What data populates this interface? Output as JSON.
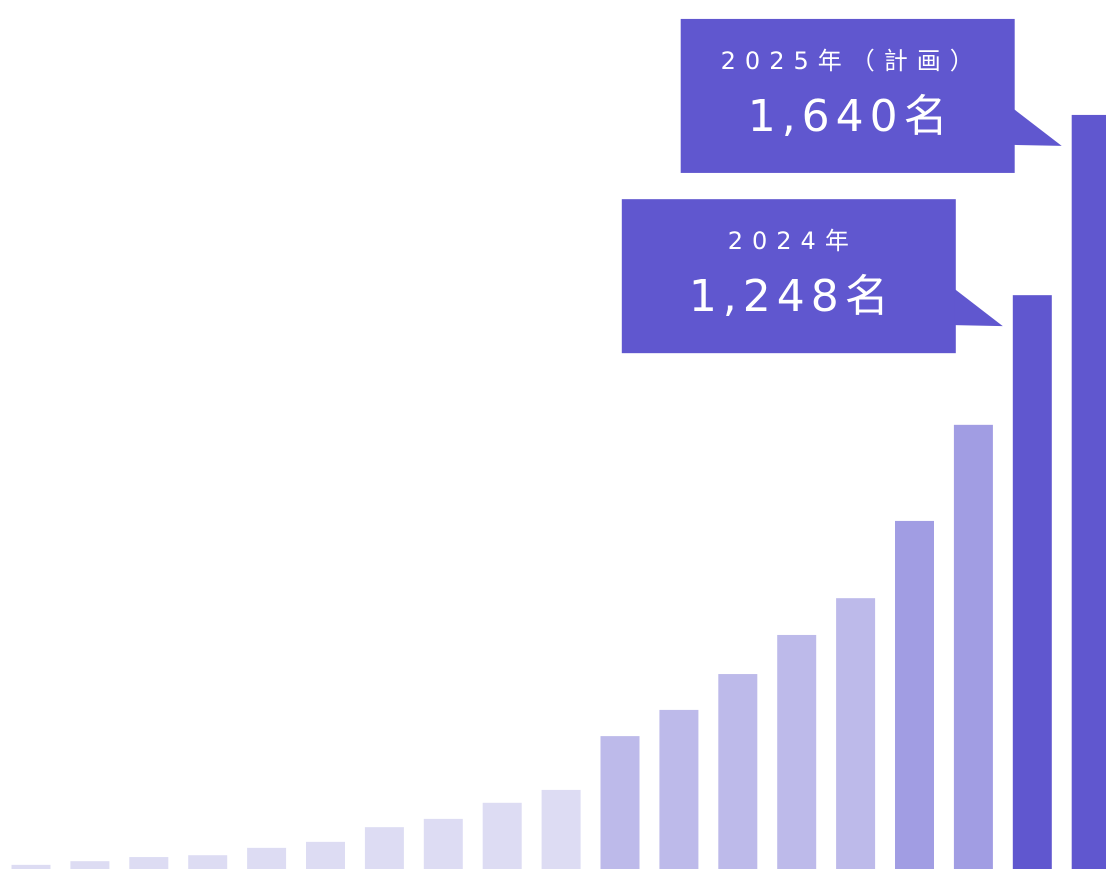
{
  "chart_data": {
    "type": "bar",
    "categories": [
      null,
      null,
      null,
      null,
      null,
      null,
      null,
      null,
      null,
      null,
      null,
      null,
      null,
      null,
      null,
      null,
      null,
      "2024年",
      "2025年（計画）"
    ],
    "values": [
      9,
      17,
      26,
      30,
      46,
      59,
      91,
      109,
      144,
      172,
      289,
      346,
      424,
      509,
      589,
      757,
      966,
      1248,
      1640
    ],
    "value_labels": [
      null,
      null,
      null,
      null,
      null,
      null,
      null,
      null,
      null,
      null,
      null,
      null,
      null,
      null,
      null,
      null,
      null,
      "1,248名",
      "1,640名"
    ],
    "colors": [
      "#dddcf3",
      "#dddcf3",
      "#dddcf3",
      "#dddcf3",
      "#dddcf3",
      "#dddcf3",
      "#dddcf3",
      "#dddcf3",
      "#dddcf3",
      "#dddcf3",
      "#bdbaea",
      "#bdbaea",
      "#bdbaea",
      "#bdbaea",
      "#bdbaea",
      "#a19de3",
      "#a19de3",
      "#6057cf",
      "#6057cf"
    ],
    "callout_color": "#6057cf",
    "ylim": [
      0,
      1800
    ]
  }
}
